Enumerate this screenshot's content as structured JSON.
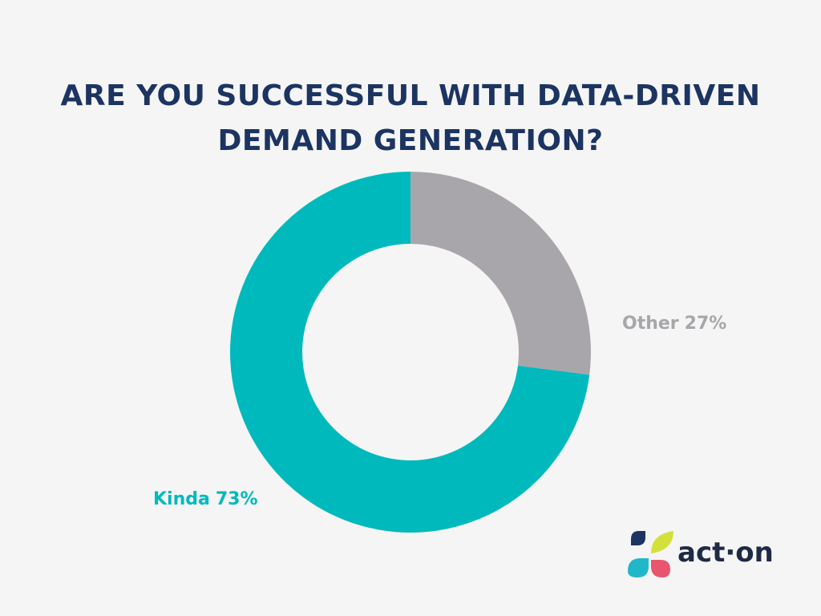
{
  "title": "ARE YOU SUCCESSFUL WITH DATA-DRIVEN DEMAND GENERATION?",
  "chart_data": {
    "type": "donut",
    "categories": [
      "Other",
      "Kinda"
    ],
    "values": [
      27,
      73
    ],
    "value_labels": [
      "27%",
      "73%"
    ],
    "colors": [
      "#a9a6ab",
      "#00b9bd"
    ]
  },
  "logo": "act·on"
}
